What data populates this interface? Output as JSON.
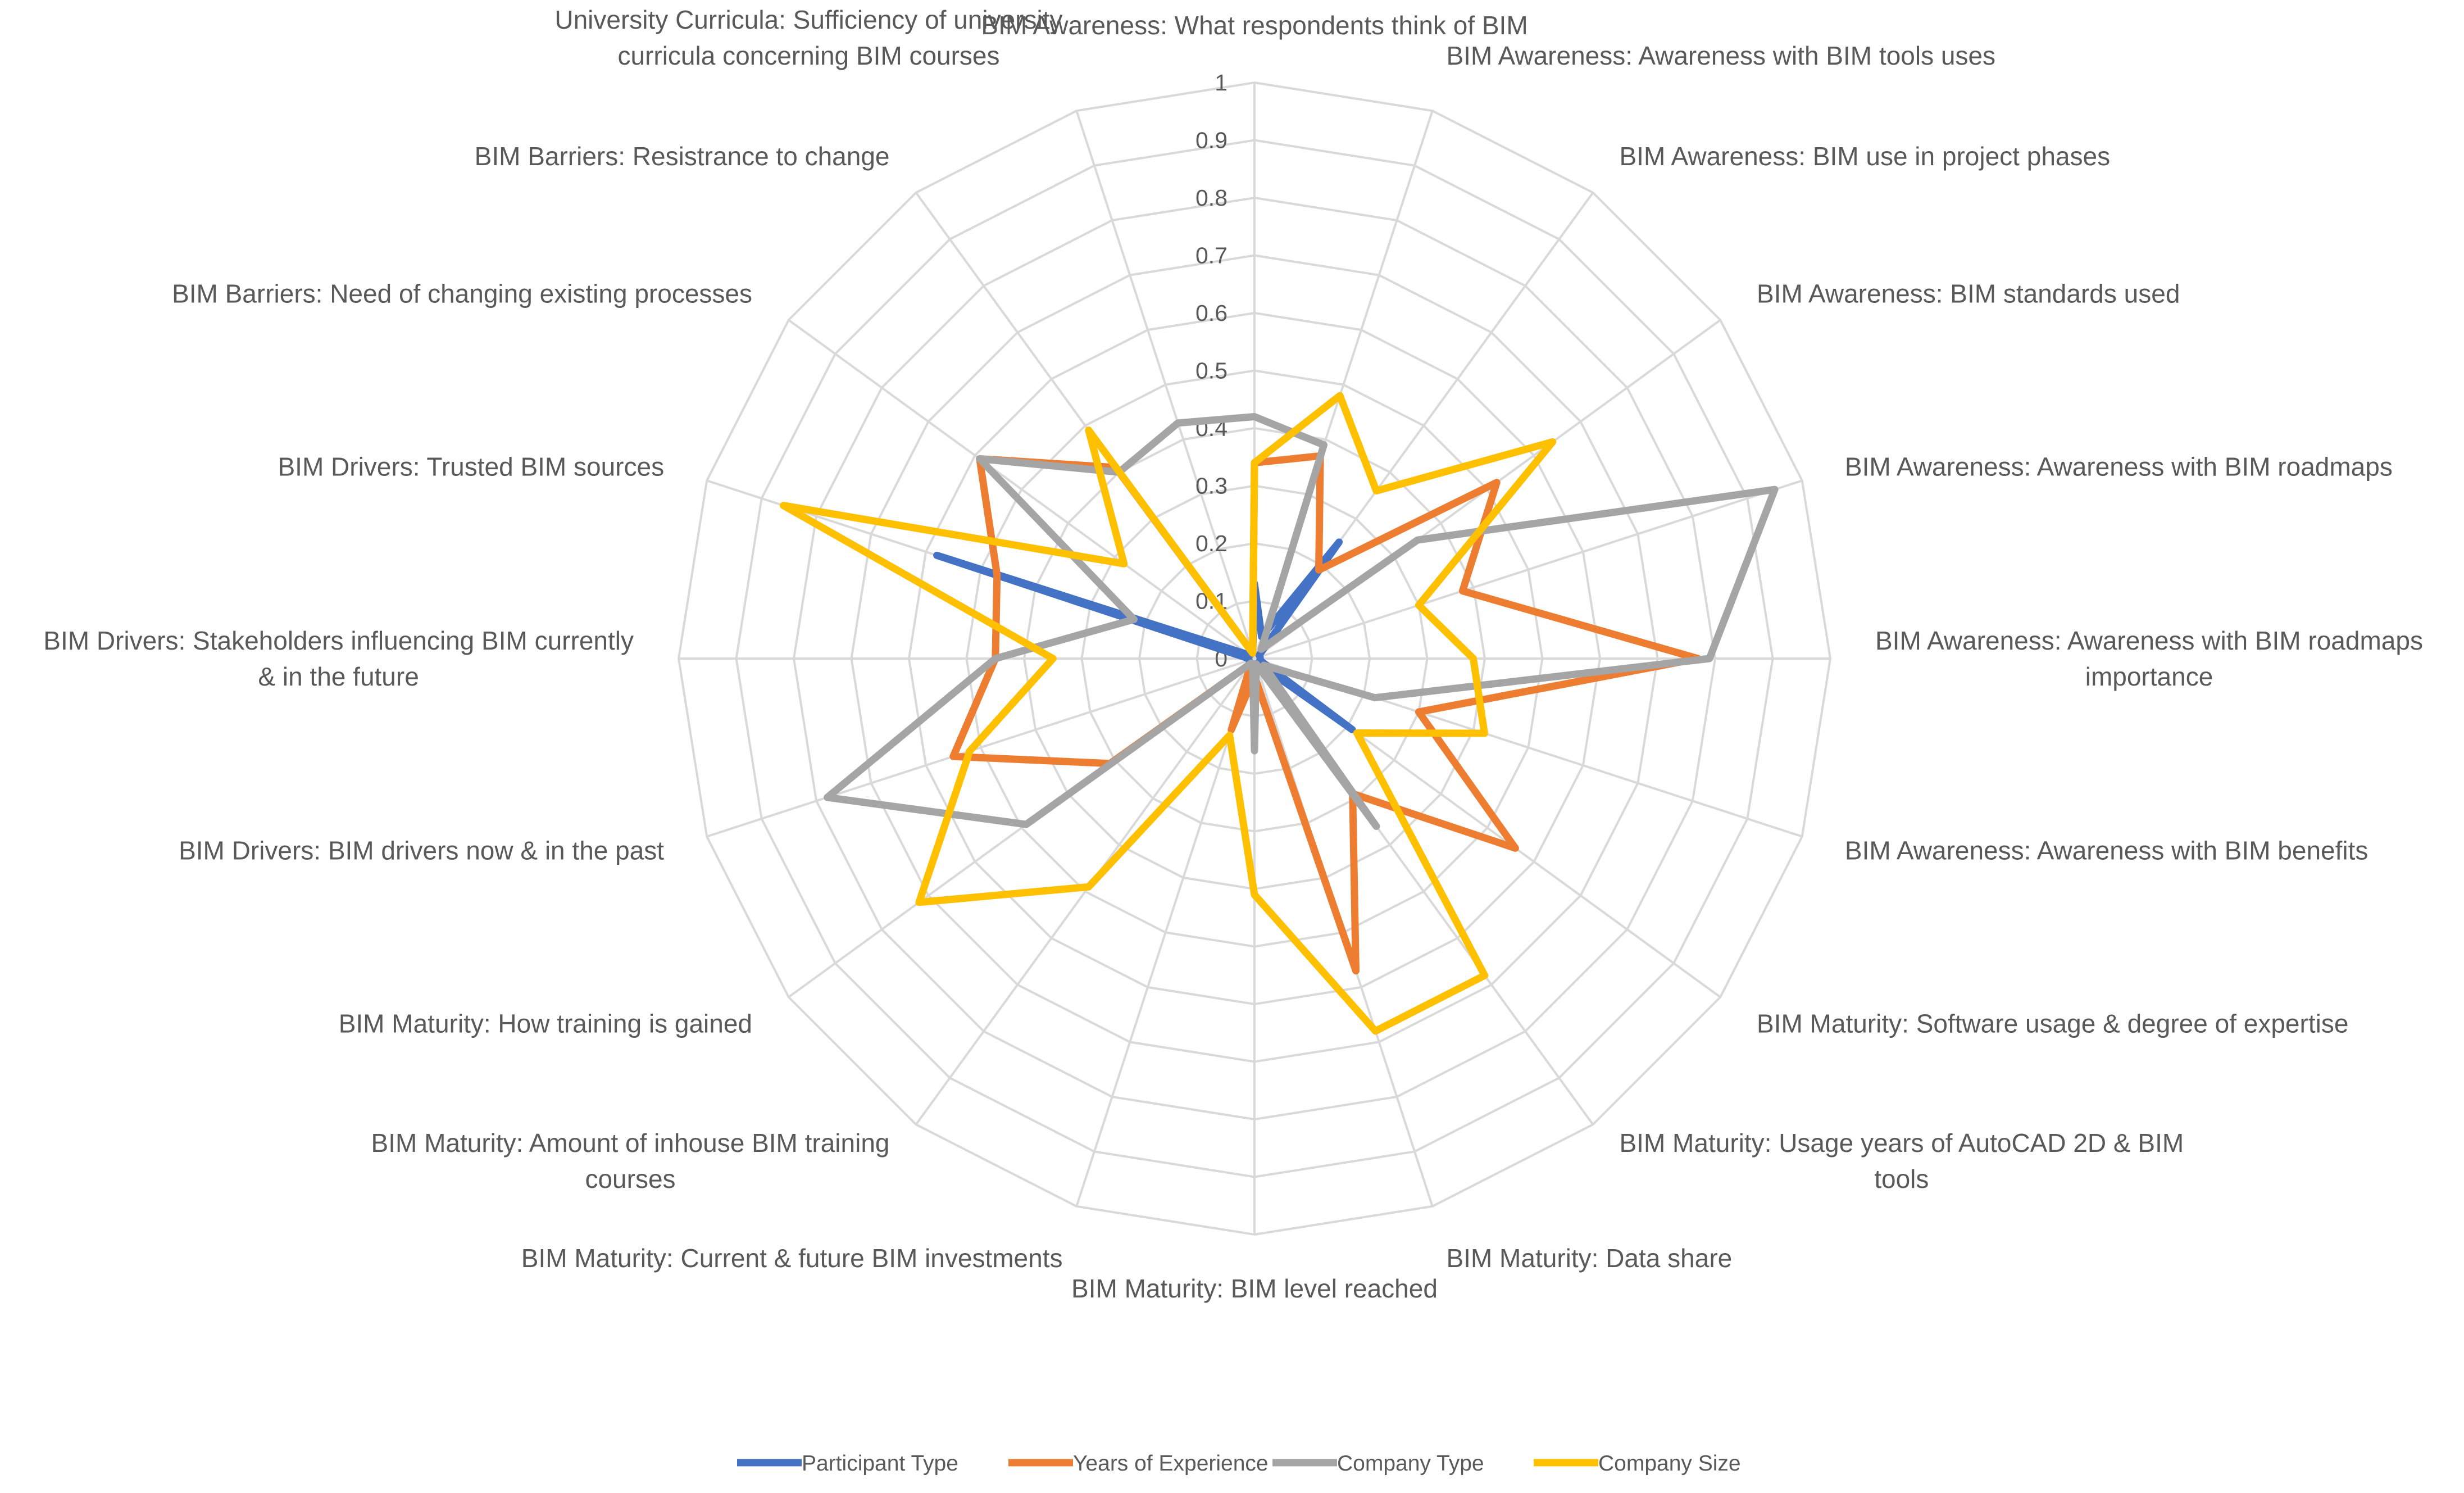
{
  "chart_data": {
    "type": "radar",
    "title": "",
    "r_range": [
      0,
      1
    ],
    "r_ticks": [
      0,
      0.1,
      0.2,
      0.3,
      0.4,
      0.5,
      0.6,
      0.7,
      0.8,
      0.9,
      1
    ],
    "tick_labels": [
      "0",
      "0.1",
      "0.2",
      "0.3",
      "0.4",
      "0.5",
      "0.6",
      "0.7",
      "0.8",
      "0.9",
      "1"
    ],
    "grid": true,
    "legend_position": "bottom",
    "categories": [
      [
        "BIM Awareness:  What respondents think of BIM"
      ],
      [
        "BIM Awareness:  Awareness with BIM tools uses"
      ],
      [
        "BIM Awareness:  BIM use in project phases"
      ],
      [
        "BIM Awareness:  BIM standards used"
      ],
      [
        "BIM Awareness:  Awareness with BIM roadmaps"
      ],
      [
        "BIM Awareness:  Awareness with BIM roadmaps",
        "importance"
      ],
      [
        "BIM Awareness:  Awareness with BIM benefits"
      ],
      [
        "BIM Maturity:  Software usage & degree of expertise"
      ],
      [
        "BIM Maturity:  Usage years of AutoCAD 2D & BIM",
        "tools"
      ],
      [
        "BIM Maturity:  Data share"
      ],
      [
        "BIM Maturity:  BIM level reached"
      ],
      [
        "BIM Maturity:  Current & future BIM investments"
      ],
      [
        "BIM Maturity:  Amount of inhouse BIM training",
        "courses"
      ],
      [
        "BIM Maturity:  How training is gained"
      ],
      [
        "BIM Drivers:  BIM drivers now & in the past"
      ],
      [
        "BIM Drivers:  Stakeholders influencing BIM currently",
        "& in the future"
      ],
      [
        "BIM Drivers:  Trusted BIM sources"
      ],
      [
        "BIM Barriers:  Need of changing existing processes"
      ],
      [
        "BIM Barriers:  Resistrance to change"
      ],
      [
        "University Curricula:  Sufficiency of university",
        "curricula concerning BIM courses"
      ]
    ],
    "series": [
      {
        "name": "Participant Type",
        "color": "#4472c4",
        "values": [
          0.13,
          0.04,
          0.25,
          0.01,
          0.01,
          0.01,
          0.01,
          0.21,
          0.01,
          0.01,
          0.01,
          0.01,
          0.01,
          0.01,
          0.01,
          0.01,
          0.58,
          0.01,
          0.01,
          0.01
        ]
      },
      {
        "name": "Years of Experience",
        "color": "#ed7d31",
        "values": [
          0.34,
          0.37,
          0.19,
          0.52,
          0.38,
          0.77,
          0.3,
          0.56,
          0.29,
          0.57,
          0.03,
          0.13,
          0.01,
          0.31,
          0.55,
          0.45,
          0.47,
          0.59,
          0.41,
          0.01
        ]
      },
      {
        "name": "Company Type",
        "color": "#a5a5a5",
        "values": [
          0.42,
          0.39,
          0.02,
          0.35,
          0.95,
          0.79,
          0.22,
          0.02,
          0.36,
          0.01,
          0.16,
          0.01,
          0.01,
          0.49,
          0.78,
          0.45,
          0.22,
          0.59,
          0.4,
          0.43
        ]
      },
      {
        "name": "Company Size",
        "color": "#ffc000",
        "values": [
          0.34,
          0.48,
          0.36,
          0.64,
          0.3,
          0.38,
          0.42,
          0.22,
          0.68,
          0.68,
          0.41,
          0.14,
          0.49,
          0.72,
          0.52,
          0.35,
          0.86,
          0.28,
          0.49,
          0.01
        ]
      }
    ]
  }
}
